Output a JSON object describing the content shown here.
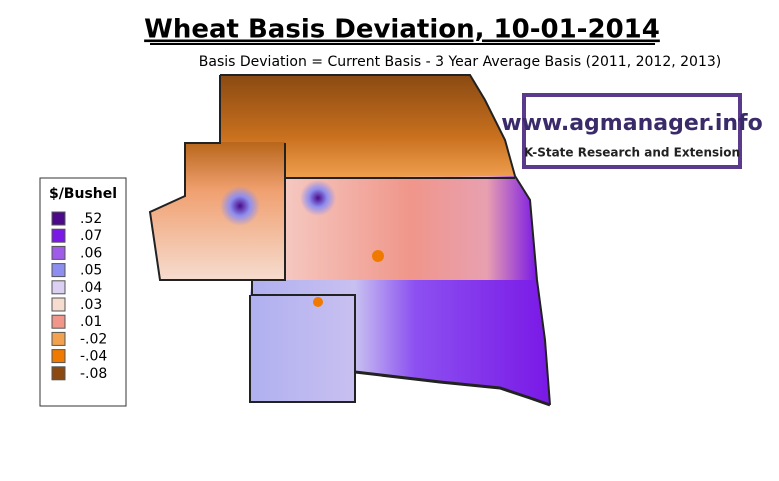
{
  "header": {
    "title": "Wheat Basis Deviation, 10-01-2014",
    "subtitle": "Basis Deviation = Current Basis - 3 Year Average Basis (2011, 2012, 2013)"
  },
  "legend": {
    "title": "$/Bushel",
    "items": [
      {
        "label": ".52",
        "color": "#4a0a8a"
      },
      {
        "label": ".07",
        "color": "#7a18e6"
      },
      {
        "label": ".06",
        "color": "#9e5ce8"
      },
      {
        "label": ".05",
        "color": "#8e8ef0"
      },
      {
        "label": ".04",
        "color": "#dcd0f2"
      },
      {
        "label": ".03",
        "color": "#f6dccf"
      },
      {
        "label": ".01",
        "color": "#f0968a"
      },
      {
        "label": "-.02",
        "color": "#f2a24e"
      },
      {
        "label": "-.04",
        "color": "#f07a00"
      },
      {
        "label": "-.08",
        "color": "#8a4a12"
      }
    ]
  },
  "logo": {
    "url": "www.agmanager.info",
    "org": "K-State Research and Extension"
  }
}
